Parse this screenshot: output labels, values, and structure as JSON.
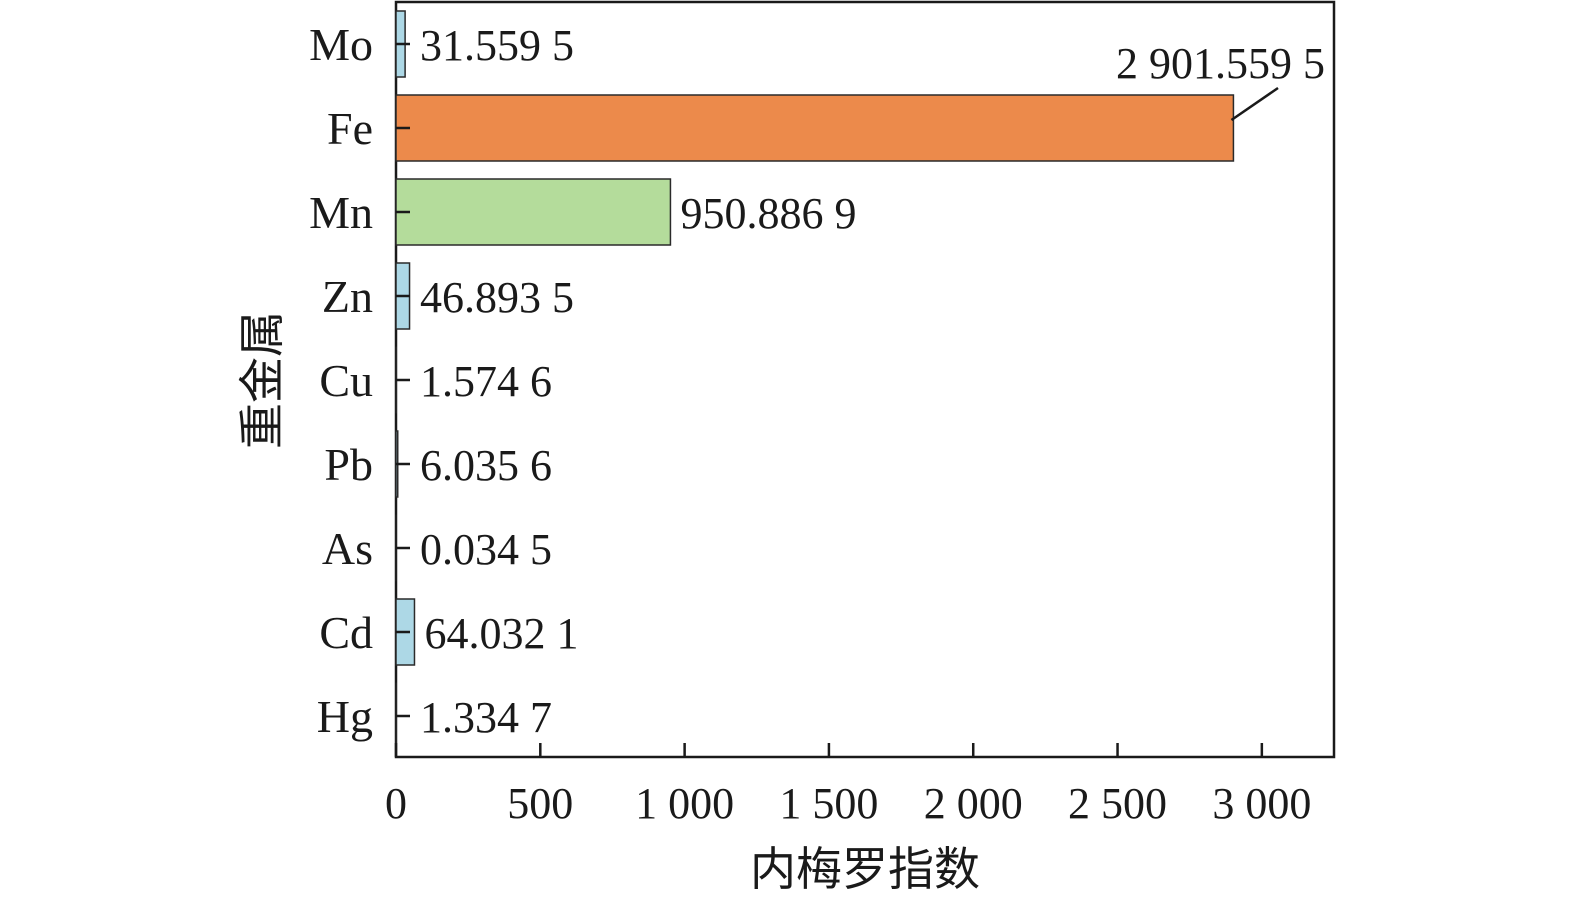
{
  "chart_data": {
    "type": "bar",
    "orientation": "horizontal",
    "xlabel": "内梅罗指数",
    "ylabel": "重金属",
    "xlim": [
      0,
      3250
    ],
    "xticks": [
      0,
      500,
      1000,
      1500,
      2000,
      2500,
      3000
    ],
    "xtick_labels": [
      "0",
      "500",
      "1 000",
      "1 500",
      "2 000",
      "2 500",
      "3 000"
    ],
    "categories": [
      "Mo",
      "Fe",
      "Mn",
      "Zn",
      "Cu",
      "Pb",
      "As",
      "Cd",
      "Hg"
    ],
    "values": [
      31.5595,
      2901.5595,
      950.8869,
      46.8935,
      1.5746,
      6.0356,
      0.0345,
      64.0321,
      1.3347
    ],
    "value_labels": [
      "31.559 5",
      "2 901.559 5",
      "950.886 9",
      "46.893 5",
      "1.574 6",
      "6.035 6",
      "0.034 5",
      "64.032 1",
      "1.334 7"
    ],
    "colors": [
      "#add8e6",
      "#ec8a4b",
      "#b4dc9b",
      "#add8e6",
      "#add8e6",
      "#add8e6",
      "#add8e6",
      "#add8e6",
      "#add8e6"
    ],
    "grid": false,
    "legend": "none"
  }
}
